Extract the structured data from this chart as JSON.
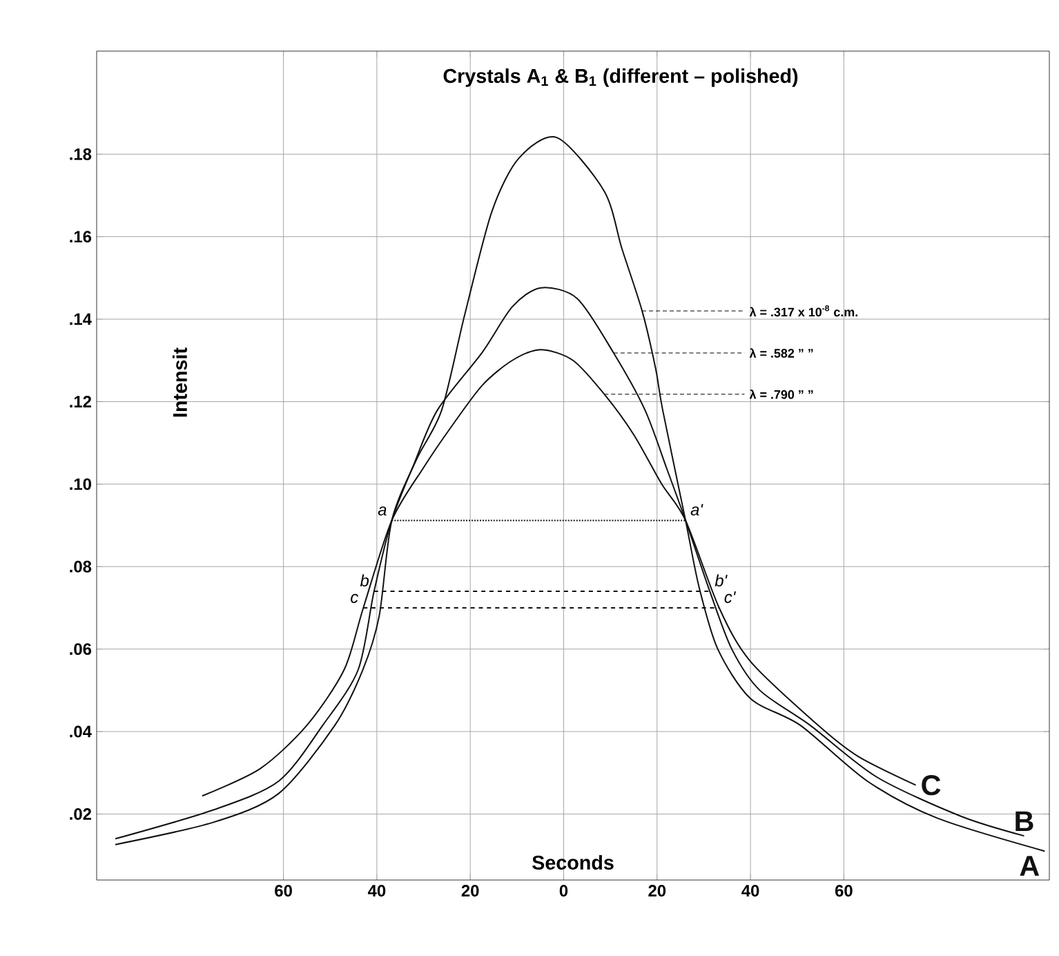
{
  "chart_data": {
    "type": "line",
    "title": "Crystals A$_{1}$ & B$_{1}$ (different – polished)",
    "xlabel": "Seconds",
    "ylabel": "Intensit",
    "xlim": [
      -100,
      104
    ],
    "ylim": [
      0.004,
      0.205
    ],
    "xticks": [
      {
        "value": -60,
        "label": "60"
      },
      {
        "value": -40,
        "label": "40"
      },
      {
        "value": -20,
        "label": "20"
      },
      {
        "value": 0,
        "label": "0"
      },
      {
        "value": 20,
        "label": "20"
      },
      {
        "value": 40,
        "label": "40"
      },
      {
        "value": 60,
        "label": "60"
      }
    ],
    "yticks": [
      {
        "value": 0.02,
        "label": ".02"
      },
      {
        "value": 0.04,
        "label": ".04"
      },
      {
        "value": 0.06,
        "label": ".06"
      },
      {
        "value": 0.08,
        "label": ".08"
      },
      {
        "value": 0.1,
        "label": ".10"
      },
      {
        "value": 0.12,
        "label": ".12"
      },
      {
        "value": 0.14,
        "label": ".14"
      },
      {
        "value": 0.16,
        "label": ".16"
      },
      {
        "value": 0.18,
        "label": ".18"
      }
    ],
    "grid": true,
    "line_style": "solid",
    "series": [
      {
        "name": "A",
        "color": "#111111",
        "x": [
          -96,
          -75,
          -61,
          -49,
          -43,
          -39.5,
          -36.8,
          -31.5,
          -26.1,
          -21.2,
          -15.4,
          -9.6,
          -1.4,
          8.7,
          12.5,
          16.8,
          19.7,
          21.2,
          26.1,
          29,
          33,
          40,
          50.7,
          65,
          80,
          103
        ],
        "values": [
          0.0126,
          0.018,
          0.025,
          0.0415,
          0.055,
          0.068,
          0.0912,
          0.106,
          0.118,
          0.141,
          0.166,
          0.179,
          0.184,
          0.171,
          0.157,
          0.142,
          0.128,
          0.118,
          0.0912,
          0.075,
          0.06,
          0.048,
          0.0415,
          0.028,
          0.019,
          0.011
        ]
      },
      {
        "name": "B",
        "color": "#111111",
        "x": [
          -96,
          -75,
          -61,
          -51.6,
          -44,
          -40.6,
          -36.8,
          -32,
          -27,
          -17.4,
          -11,
          -4.9,
          2.9,
          10.7,
          17.4,
          22,
          26.1,
          31.3,
          36,
          42,
          52.8,
          67,
          85,
          98.6
        ],
        "values": [
          0.014,
          0.021,
          0.028,
          0.0415,
          0.055,
          0.074,
          0.0912,
          0.105,
          0.118,
          0.132,
          0.143,
          0.1476,
          0.145,
          0.1318,
          0.118,
          0.104,
          0.0912,
          0.074,
          0.06,
          0.05,
          0.0415,
          0.029,
          0.0195,
          0.0147
        ]
      },
      {
        "name": "C",
        "color": "#111111",
        "x": [
          -77.4,
          -65,
          -55,
          -47,
          -42.9,
          -36.8,
          -30,
          -24,
          -17.4,
          -11,
          -4.9,
          2,
          8.7,
          15,
          21,
          26.1,
          33.3,
          40,
          54.5,
          63,
          75.4
        ],
        "values": [
          0.0244,
          0.031,
          0.0415,
          0.055,
          0.07,
          0.0912,
          0.104,
          0.114,
          0.124,
          0.13,
          0.1326,
          0.13,
          0.1218,
          0.112,
          0.1,
          0.0912,
          0.07,
          0.057,
          0.0415,
          0.034,
          0.027
        ]
      },
      {
        "type": "line",
        "line_style": "dotted",
        "color": "#111111",
        "x": [
          -36.8,
          26.1
        ],
        "values": [
          0.0912,
          0.0912
        ]
      },
      {
        "type": "line",
        "line_style": "dashed",
        "color": "#111111",
        "x": [
          -40.6,
          31.3
        ],
        "values": [
          0.074,
          0.074
        ]
      },
      {
        "type": "line",
        "line_style": "dashed",
        "color": "#111111",
        "x": [
          -42.9,
          33.3
        ],
        "values": [
          0.07,
          0.07
        ]
      }
    ],
    "annotations": [
      {
        "text": "λ = .317 x 10$^{-8}$ c.m.",
        "x": 16.8,
        "y": 0.142
      },
      {
        "text": "λ = .582   ”   ”",
        "x": 10.7,
        "y": 0.1318
      },
      {
        "text": "λ = .790   ”   ”",
        "x": 8.7,
        "y": 0.1218
      },
      {
        "text": "a",
        "x": -36.8,
        "y": 0.0912
      },
      {
        "text": "a'",
        "x": 26.1,
        "y": 0.0912
      },
      {
        "text": "b",
        "x": -40.6,
        "y": 0.074
      },
      {
        "text": "b'",
        "x": 31.3,
        "y": 0.074
      },
      {
        "text": "c",
        "x": -42.9,
        "y": 0.07
      },
      {
        "text": "c'",
        "x": 33.3,
        "y": 0.07
      }
    ]
  }
}
